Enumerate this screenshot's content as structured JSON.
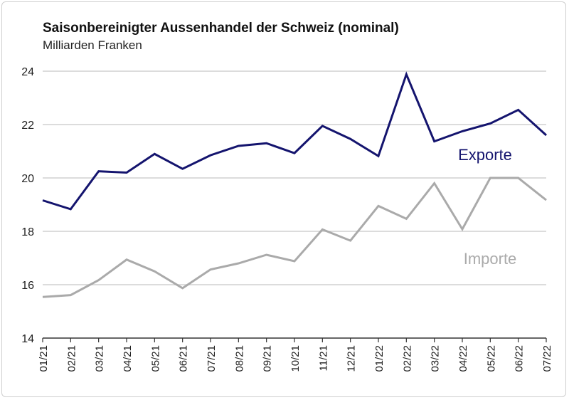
{
  "chart_data": {
    "type": "line",
    "title": "Saisonbereinigter Aussenhandel der Schweiz (nominal)",
    "subtitle": "Milliarden Franken",
    "xlabel": "",
    "ylabel": "",
    "ylim": [
      14,
      24
    ],
    "yticks": [
      "14",
      "16",
      "18",
      "20",
      "22",
      "24"
    ],
    "grid": true,
    "categories": [
      "01/21",
      "02/21",
      "03/21",
      "04/21",
      "05/21",
      "06/21",
      "07/21",
      "08/21",
      "09/21",
      "10/21",
      "11/21",
      "12/21",
      "01/22",
      "02/22",
      "03/22",
      "04/22",
      "05/22",
      "06/22",
      "07/22"
    ],
    "series": [
      {
        "name": "Exporte",
        "color": "#14146e",
        "values": [
          19.16,
          18.83,
          20.25,
          20.2,
          20.9,
          20.34,
          20.85,
          21.2,
          21.3,
          20.93,
          21.95,
          21.46,
          20.82,
          23.88,
          21.37,
          21.75,
          22.04,
          22.55,
          21.6
        ]
      },
      {
        "name": "Importe",
        "color": "#aaaaaa",
        "values": [
          15.54,
          15.61,
          16.17,
          16.94,
          16.5,
          15.87,
          16.57,
          16.8,
          17.12,
          16.88,
          18.07,
          17.65,
          18.95,
          18.47,
          19.8,
          18.08,
          20.0,
          20.0,
          19.17
        ]
      }
    ]
  }
}
